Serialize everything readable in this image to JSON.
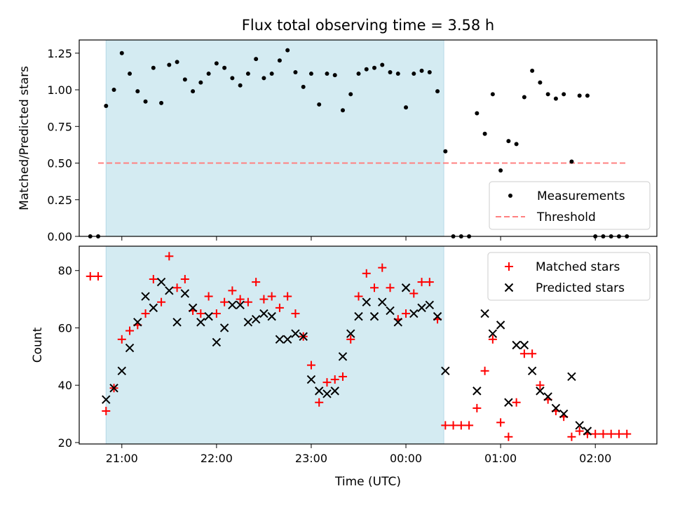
{
  "chart_data": [
    {
      "type": "scatter",
      "title": "Flux total observing time = 3.58 h",
      "xlabel": "",
      "ylabel": "Matched/Predicted stars",
      "xlim": [
        "20:33",
        "02:39"
      ],
      "ylim": [
        0,
        1.34
      ],
      "yticks": [
        0.0,
        0.25,
        0.5,
        0.75,
        1.0,
        1.25
      ],
      "ytick_labels": [
        "0.00",
        "0.25",
        "0.50",
        "0.75",
        "1.00",
        "1.25"
      ],
      "xtick_labels": [
        "21:00",
        "22:00",
        "23:00",
        "00:00",
        "01:00",
        "02:00"
      ],
      "xticks": [
        "21:00",
        "22:00",
        "23:00",
        "00:00",
        "01:00",
        "02:00"
      ],
      "shaded_region": [
        "20:50",
        "00:24"
      ],
      "shaded_color": "#d4ebf2",
      "threshold": {
        "y": 0.5,
        "x_from": "20:45",
        "x_to": "02:20",
        "color": "#ff8080"
      },
      "legend_position": "lower-right",
      "legend": [
        {
          "label": "Measurements",
          "marker": "dot",
          "color": "#000000"
        },
        {
          "label": "Threshold",
          "marker": "dashed-line",
          "color": "#ff8080"
        }
      ],
      "series": [
        {
          "name": "Measurements",
          "color": "#000000",
          "points": [
            [
              "20:40",
              0.0
            ],
            [
              "20:45",
              0.0
            ],
            [
              "20:50",
              0.89
            ],
            [
              "20:55",
              1.0
            ],
            [
              "21:00",
              1.25
            ],
            [
              "21:05",
              1.11
            ],
            [
              "21:10",
              0.99
            ],
            [
              "21:15",
              0.92
            ],
            [
              "21:20",
              1.15
            ],
            [
              "21:25",
              0.91
            ],
            [
              "21:30",
              1.17
            ],
            [
              "21:35",
              1.19
            ],
            [
              "21:40",
              1.07
            ],
            [
              "21:45",
              0.99
            ],
            [
              "21:50",
              1.05
            ],
            [
              "21:55",
              1.11
            ],
            [
              "22:00",
              1.18
            ],
            [
              "22:05",
              1.15
            ],
            [
              "22:10",
              1.08
            ],
            [
              "22:15",
              1.03
            ],
            [
              "22:20",
              1.11
            ],
            [
              "22:25",
              1.21
            ],
            [
              "22:30",
              1.08
            ],
            [
              "22:35",
              1.11
            ],
            [
              "22:40",
              1.2
            ],
            [
              "22:45",
              1.27
            ],
            [
              "22:50",
              1.12
            ],
            [
              "22:55",
              1.02
            ],
            [
              "23:00",
              1.11
            ],
            [
              "23:05",
              0.9
            ],
            [
              "23:10",
              1.11
            ],
            [
              "23:15",
              1.1
            ],
            [
              "23:20",
              0.86
            ],
            [
              "23:25",
              0.97
            ],
            [
              "23:30",
              1.11
            ],
            [
              "23:35",
              1.14
            ],
            [
              "23:40",
              1.15
            ],
            [
              "23:45",
              1.17
            ],
            [
              "23:50",
              1.12
            ],
            [
              "23:55",
              1.11
            ],
            [
              "00:00",
              0.88
            ],
            [
              "00:05",
              1.11
            ],
            [
              "00:10",
              1.13
            ],
            [
              "00:15",
              1.12
            ],
            [
              "00:20",
              0.99
            ],
            [
              "00:25",
              0.58
            ],
            [
              "00:30",
              0.0
            ],
            [
              "00:35",
              0.0
            ],
            [
              "00:40",
              0.0
            ],
            [
              "00:45",
              0.84
            ],
            [
              "00:50",
              0.7
            ],
            [
              "00:55",
              0.97
            ],
            [
              "01:00",
              0.45
            ],
            [
              "01:05",
              0.65
            ],
            [
              "01:10",
              0.63
            ],
            [
              "01:15",
              0.95
            ],
            [
              "01:20",
              1.13
            ],
            [
              "01:25",
              1.05
            ],
            [
              "01:30",
              0.97
            ],
            [
              "01:35",
              0.94
            ],
            [
              "01:40",
              0.97
            ],
            [
              "01:45",
              0.51
            ],
            [
              "01:50",
              0.96
            ],
            [
              "01:55",
              0.96
            ],
            [
              "02:00",
              0.0
            ],
            [
              "02:05",
              0.0
            ],
            [
              "02:10",
              0.0
            ],
            [
              "02:15",
              0.0
            ],
            [
              "02:20",
              0.0
            ]
          ]
        }
      ]
    },
    {
      "type": "scatter",
      "title": "",
      "xlabel": "Time (UTC)",
      "ylabel": "Count",
      "xlim": [
        "20:33",
        "02:39"
      ],
      "ylim": [
        19.5,
        88.5
      ],
      "yticks": [
        20,
        40,
        60,
        80
      ],
      "ytick_labels": [
        "20",
        "40",
        "60",
        "80"
      ],
      "xtick_labels": [
        "21:00",
        "22:00",
        "23:00",
        "00:00",
        "01:00",
        "02:00"
      ],
      "xticks": [
        "21:00",
        "22:00",
        "23:00",
        "00:00",
        "01:00",
        "02:00"
      ],
      "shaded_region": [
        "20:50",
        "00:24"
      ],
      "shaded_color": "#d4ebf2",
      "legend_position": "upper-right",
      "legend": [
        {
          "label": "Matched stars",
          "marker": "plus",
          "color": "#ff0000"
        },
        {
          "label": "Predicted stars",
          "marker": "x",
          "color": "#000000"
        }
      ],
      "series": [
        {
          "name": "Matched stars",
          "marker": "plus",
          "color": "#ff0000",
          "points": [
            [
              "20:40",
              78
            ],
            [
              "20:45",
              78
            ],
            [
              "20:50",
              31
            ],
            [
              "20:55",
              39
            ],
            [
              "21:00",
              56
            ],
            [
              "21:05",
              59
            ],
            [
              "21:10",
              61
            ],
            [
              "21:15",
              65
            ],
            [
              "21:20",
              77
            ],
            [
              "21:25",
              69
            ],
            [
              "21:30",
              85
            ],
            [
              "21:35",
              74
            ],
            [
              "21:40",
              77
            ],
            [
              "21:45",
              66
            ],
            [
              "21:50",
              65
            ],
            [
              "21:55",
              71
            ],
            [
              "22:00",
              65
            ],
            [
              "22:05",
              69
            ],
            [
              "22:10",
              73
            ],
            [
              "22:15",
              70
            ],
            [
              "22:20",
              69
            ],
            [
              "22:25",
              76
            ],
            [
              "22:30",
              70
            ],
            [
              "22:35",
              71
            ],
            [
              "22:40",
              67
            ],
            [
              "22:45",
              71
            ],
            [
              "22:50",
              65
            ],
            [
              "22:55",
              57
            ],
            [
              "23:00",
              47
            ],
            [
              "23:05",
              34
            ],
            [
              "23:10",
              41
            ],
            [
              "23:15",
              42
            ],
            [
              "23:20",
              43
            ],
            [
              "23:25",
              56
            ],
            [
              "23:30",
              71
            ],
            [
              "23:35",
              79
            ],
            [
              "23:40",
              74
            ],
            [
              "23:45",
              81
            ],
            [
              "23:50",
              74
            ],
            [
              "23:55",
              63
            ],
            [
              "00:00",
              65
            ],
            [
              "00:05",
              72
            ],
            [
              "00:10",
              76
            ],
            [
              "00:15",
              76
            ],
            [
              "00:20",
              63
            ],
            [
              "00:25",
              26
            ],
            [
              "00:30",
              26
            ],
            [
              "00:35",
              26
            ],
            [
              "00:40",
              26
            ],
            [
              "00:45",
              32
            ],
            [
              "00:50",
              45
            ],
            [
              "00:55",
              56
            ],
            [
              "01:00",
              27
            ],
            [
              "01:05",
              22
            ],
            [
              "01:10",
              34
            ],
            [
              "01:15",
              51
            ],
            [
              "01:20",
              51
            ],
            [
              "01:25",
              40
            ],
            [
              "01:30",
              35
            ],
            [
              "01:35",
              31
            ],
            [
              "01:40",
              29
            ],
            [
              "01:45",
              22
            ],
            [
              "01:50",
              24
            ],
            [
              "01:55",
              23
            ],
            [
              "02:00",
              23
            ],
            [
              "02:05",
              23
            ],
            [
              "02:10",
              23
            ],
            [
              "02:15",
              23
            ],
            [
              "02:20",
              23
            ]
          ]
        },
        {
          "name": "Predicted stars",
          "marker": "x",
          "color": "#000000",
          "points": [
            [
              "20:50",
              35
            ],
            [
              "20:55",
              39
            ],
            [
              "21:00",
              45
            ],
            [
              "21:05",
              53
            ],
            [
              "21:10",
              62
            ],
            [
              "21:15",
              71
            ],
            [
              "21:20",
              67
            ],
            [
              "21:25",
              76
            ],
            [
              "21:30",
              73
            ],
            [
              "21:35",
              62
            ],
            [
              "21:40",
              72
            ],
            [
              "21:45",
              67
            ],
            [
              "21:50",
              62
            ],
            [
              "21:55",
              64
            ],
            [
              "22:00",
              55
            ],
            [
              "22:05",
              60
            ],
            [
              "22:10",
              68
            ],
            [
              "22:15",
              68
            ],
            [
              "22:20",
              62
            ],
            [
              "22:25",
              63
            ],
            [
              "22:30",
              65
            ],
            [
              "22:35",
              64
            ],
            [
              "22:40",
              56
            ],
            [
              "22:45",
              56
            ],
            [
              "22:50",
              58
            ],
            [
              "22:55",
              57
            ],
            [
              "23:00",
              42
            ],
            [
              "23:05",
              38
            ],
            [
              "23:10",
              37
            ],
            [
              "23:15",
              38
            ],
            [
              "23:20",
              50
            ],
            [
              "23:25",
              58
            ],
            [
              "23:30",
              64
            ],
            [
              "23:35",
              69
            ],
            [
              "23:40",
              64
            ],
            [
              "23:45",
              69
            ],
            [
              "23:50",
              66
            ],
            [
              "23:55",
              62
            ],
            [
              "00:00",
              74
            ],
            [
              "00:05",
              65
            ],
            [
              "00:10",
              67
            ],
            [
              "00:15",
              68
            ],
            [
              "00:20",
              64
            ],
            [
              "00:25",
              45
            ],
            [
              "00:45",
              38
            ],
            [
              "00:50",
              65
            ],
            [
              "00:55",
              58
            ],
            [
              "01:00",
              61
            ],
            [
              "01:05",
              34
            ],
            [
              "01:10",
              54
            ],
            [
              "01:15",
              54
            ],
            [
              "01:20",
              45
            ],
            [
              "01:25",
              38
            ],
            [
              "01:30",
              36
            ],
            [
              "01:35",
              32
            ],
            [
              "01:40",
              30
            ],
            [
              "01:45",
              43
            ],
            [
              "01:50",
              26
            ],
            [
              "01:55",
              24
            ]
          ]
        }
      ]
    }
  ]
}
